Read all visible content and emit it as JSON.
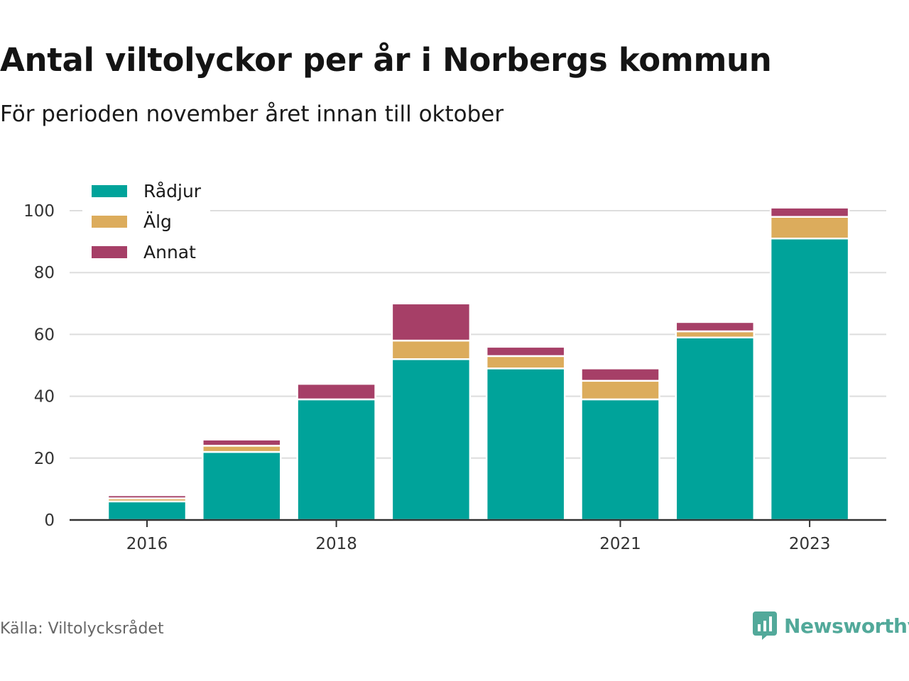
{
  "title": "Antal viltolyckor per år i Norbergs kommun",
  "subtitle": "För perioden november året innan till oktober",
  "source": "Källa: Viltolycksrådet",
  "brand": {
    "name": "Newsworthy",
    "color": "#52a99a"
  },
  "chart_data": {
    "type": "bar",
    "stacked": true,
    "categories": [
      "2016",
      "2017",
      "2018",
      "2019",
      "2020",
      "2021",
      "2022",
      "2023"
    ],
    "x_tick_labels": [
      "2016",
      "",
      "2018",
      "",
      "",
      "2021",
      "",
      "2023"
    ],
    "series": [
      {
        "name": "Rådjur",
        "color": "#00a39a",
        "values": [
          6,
          22,
          39,
          52,
          49,
          39,
          59,
          91
        ]
      },
      {
        "name": "Älg",
        "color": "#dcac5c",
        "values": [
          1,
          2,
          0,
          6,
          4,
          6,
          2,
          7
        ]
      },
      {
        "name": "Annat",
        "color": "#a63f67",
        "values": [
          1,
          2,
          5,
          12,
          3,
          4,
          3,
          3
        ]
      }
    ],
    "ylim": [
      0,
      100
    ],
    "yticks": [
      0,
      20,
      40,
      60,
      80,
      100
    ],
    "grid": true,
    "legend_position": "top-left",
    "xlabel": "",
    "ylabel": ""
  }
}
